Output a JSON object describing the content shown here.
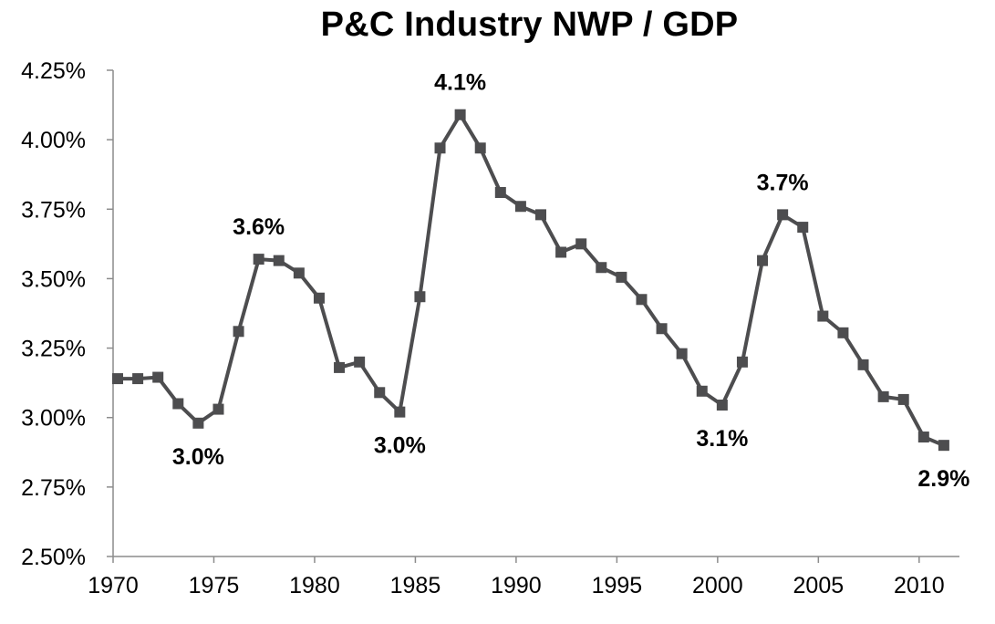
{
  "chart_data": {
    "type": "line",
    "title": "P&C Industry NWP / GDP",
    "xlabel": "",
    "ylabel": "",
    "x": [
      1970,
      1971,
      1972,
      1973,
      1974,
      1975,
      1976,
      1977,
      1978,
      1979,
      1980,
      1981,
      1982,
      1983,
      1984,
      1985,
      1986,
      1987,
      1988,
      1989,
      1990,
      1991,
      1992,
      1993,
      1994,
      1995,
      1996,
      1997,
      1998,
      1999,
      2000,
      2001,
      2002,
      2003,
      2004,
      2005,
      2006,
      2007,
      2008,
      2009,
      2010,
      2011
    ],
    "series": [
      {
        "values": [
          3.14,
          3.14,
          3.145,
          3.05,
          2.98,
          3.03,
          3.31,
          3.57,
          3.565,
          3.52,
          3.43,
          3.18,
          3.2,
          3.09,
          3.02,
          3.435,
          3.97,
          4.09,
          3.97,
          3.81,
          3.76,
          3.73,
          3.595,
          3.625,
          3.54,
          3.505,
          3.425,
          3.32,
          3.23,
          3.095,
          3.045,
          3.2,
          3.565,
          3.73,
          3.685,
          3.365,
          3.305,
          3.19,
          3.075,
          3.065,
          2.93,
          2.9
        ],
        "color": "#4d4d4f",
        "marker": "square"
      }
    ],
    "xlim": [
      1970,
      2011.5
    ],
    "ylim": [
      2.5,
      4.25
    ],
    "x_ticks": [
      1970,
      1975,
      1980,
      1985,
      1990,
      1995,
      2000,
      2005,
      2010
    ],
    "x_tick_labels": [
      "1970",
      "1975",
      "1980",
      "1985",
      "1990",
      "1995",
      "2000",
      "2005",
      "2010"
    ],
    "y_ticks": [
      2.5,
      2.75,
      3.0,
      3.25,
      3.5,
      3.75,
      4.0,
      4.25
    ],
    "y_tick_labels": [
      "2.50%",
      "2.75%",
      "3.00%",
      "3.25%",
      "3.50%",
      "3.75%",
      "4.00%",
      "4.25%"
    ],
    "annotations": [
      {
        "text": "3.0%",
        "x": 1974,
        "position": "below"
      },
      {
        "text": "3.6%",
        "x": 1977,
        "position": "above"
      },
      {
        "text": "3.0%",
        "x": 1984,
        "position": "below"
      },
      {
        "text": "4.1%",
        "x": 1987,
        "position": "above"
      },
      {
        "text": "3.1%",
        "x": 2000,
        "position": "below"
      },
      {
        "text": "3.7%",
        "x": 2003,
        "position": "above"
      },
      {
        "text": "2.9%",
        "x": 2011,
        "position": "below"
      }
    ],
    "grid": false,
    "legend": "none"
  }
}
